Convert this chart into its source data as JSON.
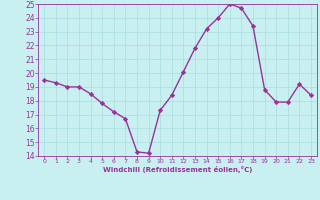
{
  "x": [
    0,
    1,
    2,
    3,
    4,
    5,
    6,
    7,
    8,
    9,
    10,
    11,
    12,
    13,
    14,
    15,
    16,
    17,
    18,
    19,
    20,
    21,
    22,
    23
  ],
  "y": [
    19.5,
    19.3,
    19.0,
    19.0,
    18.5,
    17.8,
    17.2,
    16.7,
    14.3,
    14.2,
    17.3,
    18.4,
    20.1,
    21.8,
    23.2,
    24.0,
    25.0,
    24.7,
    23.4,
    18.8,
    17.9,
    17.9,
    19.2,
    18.4
  ],
  "line_color": "#993399",
  "marker": "D",
  "marker_size": 2.2,
  "line_width": 1.0,
  "bg_color": "#c8f0f0",
  "grid_color": "#aadddd",
  "xlabel": "Windchill (Refroidissement éolien,°C)",
  "tick_color": "#993399",
  "ylim": [
    14,
    25
  ],
  "xlim_min": -0.5,
  "xlim_max": 23.5,
  "yticks": [
    14,
    15,
    16,
    17,
    18,
    19,
    20,
    21,
    22,
    23,
    24,
    25
  ],
  "xticks": [
    0,
    1,
    2,
    3,
    4,
    5,
    6,
    7,
    8,
    9,
    10,
    11,
    12,
    13,
    14,
    15,
    16,
    17,
    18,
    19,
    20,
    21,
    22,
    23
  ]
}
